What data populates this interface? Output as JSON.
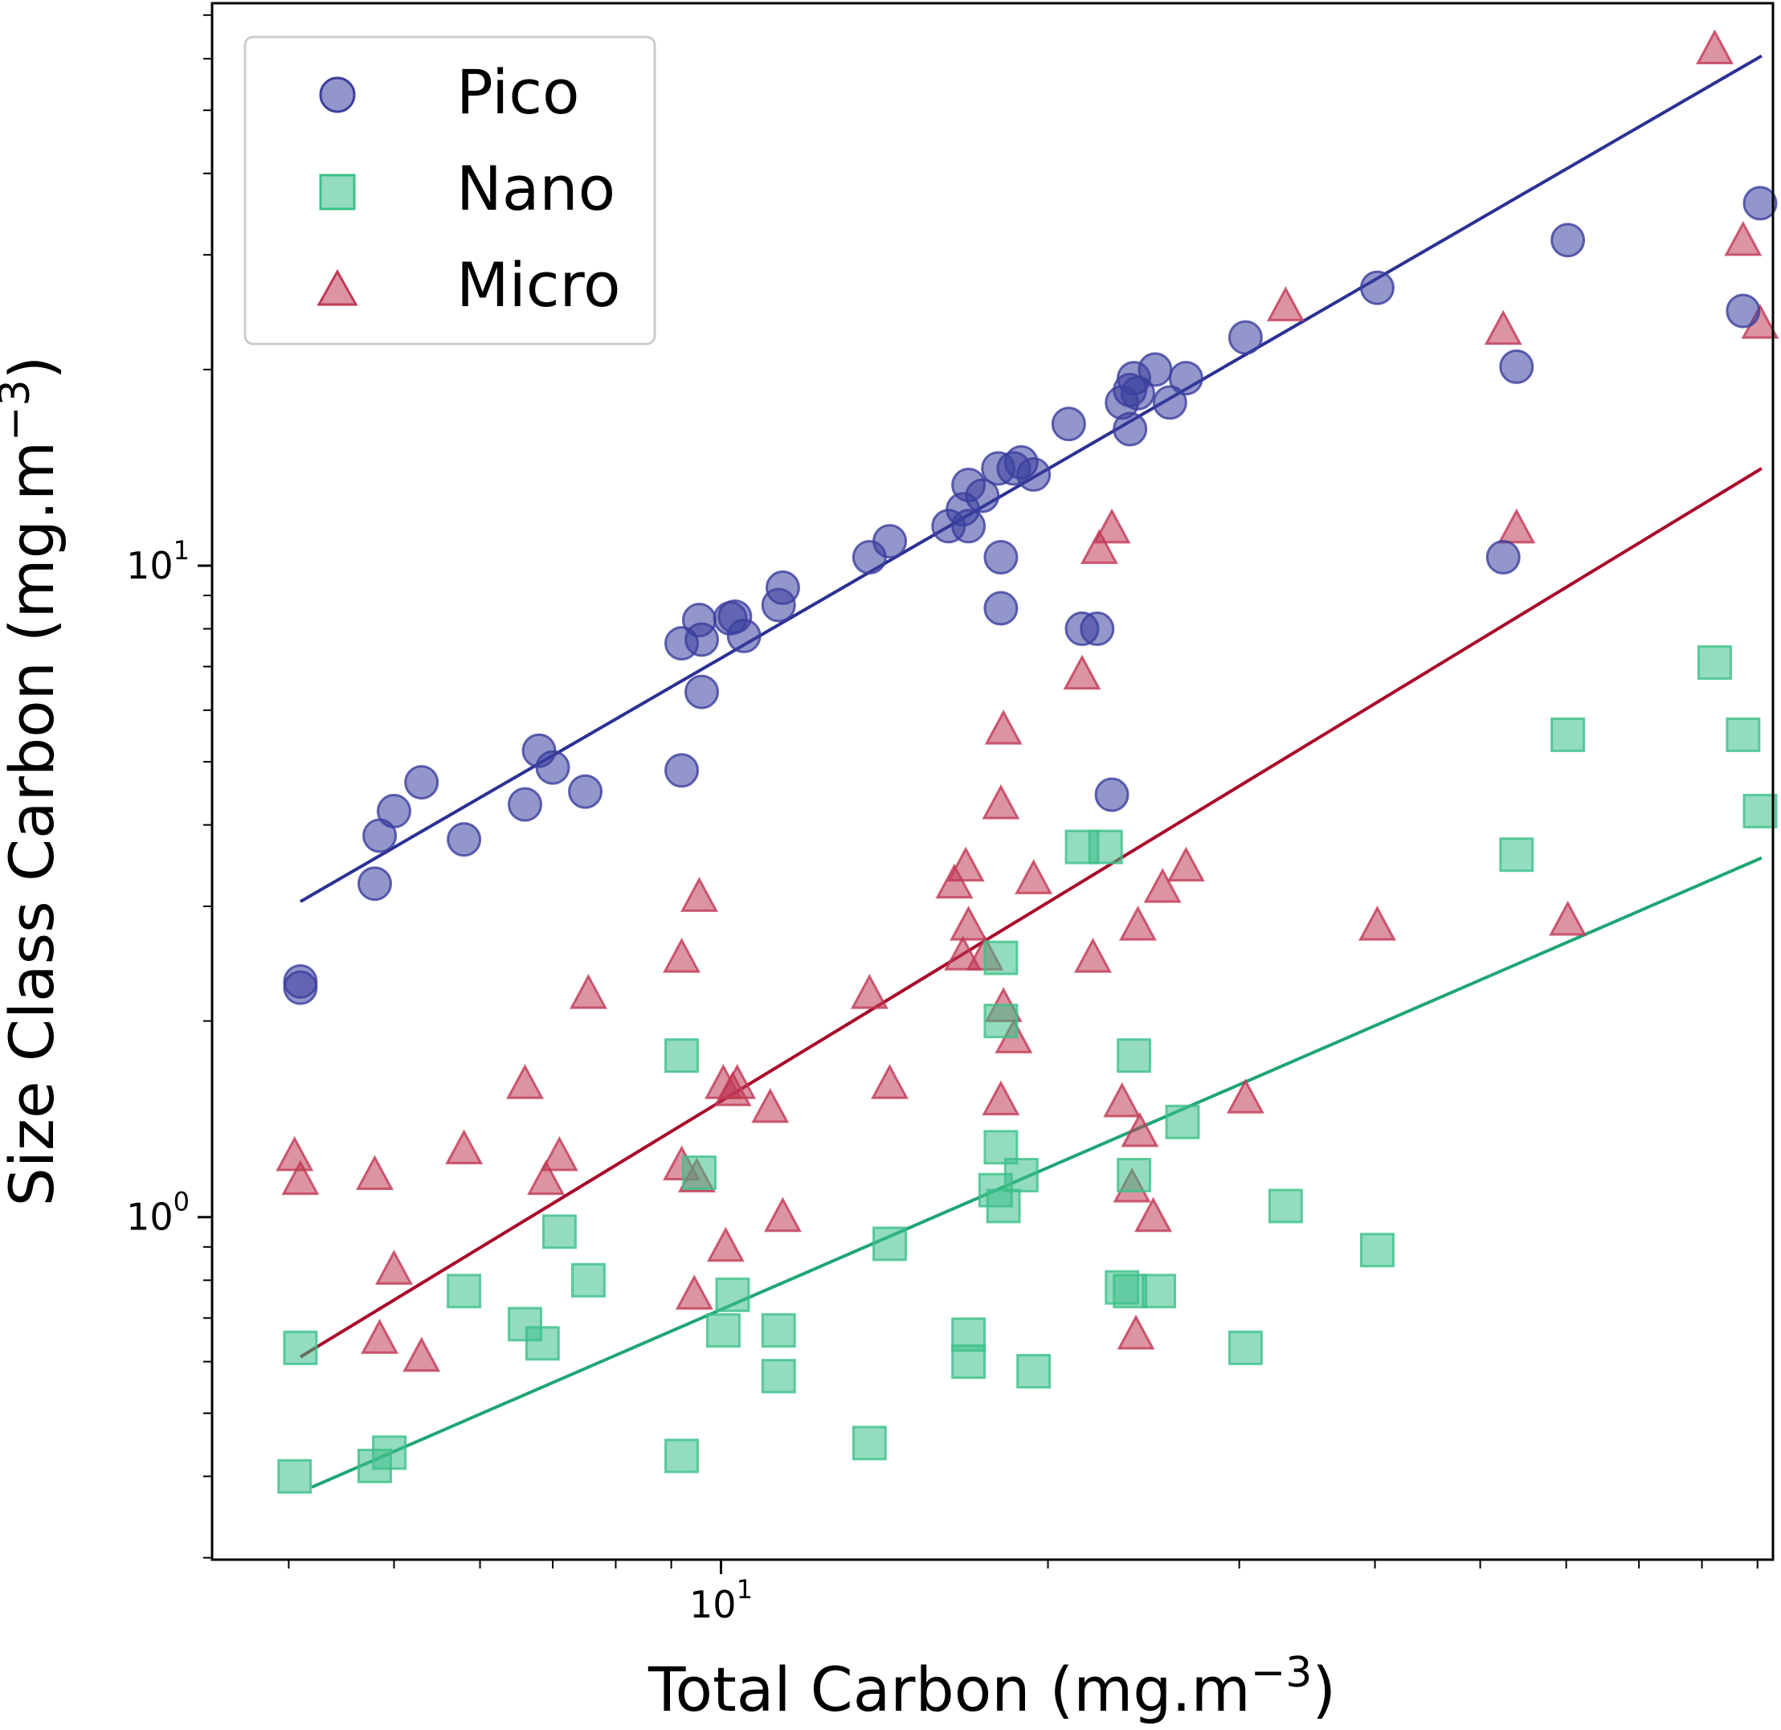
{
  "colors": {
    "pico": "#3b3f9e",
    "pico_line": "#2c3193",
    "nano": "#3cc08a",
    "nano_line": "#1fa673",
    "micro": "#c03a55",
    "micro_line": "#a8082a"
  },
  "chart_data": {
    "type": "scatter",
    "title": "",
    "xlabel": "Total Carbon (mg.m",
    "ylabel": "Size Class Carbon (mg.m",
    "unit_exponent": "−3",
    "xscale": "log",
    "yscale": "log",
    "xlim": [
      3.4,
      93
    ],
    "ylim": [
      0.298,
      73
    ],
    "x_ticks": [
      {
        "base": "10",
        "exp": "1",
        "value": 10
      }
    ],
    "y_ticks": [
      {
        "base": "10",
        "exp": "0",
        "value": 1
      },
      {
        "base": "10",
        "exp": "1",
        "value": 10
      }
    ],
    "legend": {
      "position": "top-left",
      "entries": [
        "Pico",
        "Nano",
        "Micro"
      ]
    },
    "series": [
      {
        "name": "Pico",
        "marker": "circle",
        "fit": {
          "x": [
            4.1,
            90.8
          ],
          "y": [
            3.05,
            60.6
          ]
        },
        "points": [
          [
            4.1,
            2.3
          ],
          [
            4.1,
            2.25
          ],
          [
            4.8,
            3.25
          ],
          [
            4.85,
            3.85
          ],
          [
            5.0,
            4.2
          ],
          [
            5.3,
            4.65
          ],
          [
            5.8,
            3.8
          ],
          [
            6.6,
            4.3
          ],
          [
            6.8,
            5.2
          ],
          [
            7.0,
            4.9
          ],
          [
            7.5,
            4.5
          ],
          [
            9.2,
            4.85
          ],
          [
            9.2,
            7.6
          ],
          [
            9.55,
            8.25
          ],
          [
            9.6,
            6.4
          ],
          [
            9.6,
            7.7
          ],
          [
            10.2,
            8.3
          ],
          [
            10.3,
            8.35
          ],
          [
            10.5,
            7.8
          ],
          [
            11.3,
            8.7
          ],
          [
            11.4,
            9.25
          ],
          [
            13.7,
            10.3
          ],
          [
            14.3,
            10.9
          ],
          [
            16.2,
            11.5
          ],
          [
            16.7,
            12.2
          ],
          [
            16.9,
            11.5
          ],
          [
            16.9,
            13.3
          ],
          [
            17.4,
            12.8
          ],
          [
            18.0,
            14.1
          ],
          [
            18.1,
            10.3
          ],
          [
            18.1,
            8.6
          ],
          [
            18.6,
            14.1
          ],
          [
            18.9,
            14.4
          ],
          [
            19.4,
            13.8
          ],
          [
            20.9,
            16.5
          ],
          [
            21.5,
            8.0
          ],
          [
            22.2,
            8.0
          ],
          [
            22.9,
            4.45
          ],
          [
            23.4,
            17.8
          ],
          [
            23.8,
            16.2
          ],
          [
            23.8,
            18.6
          ],
          [
            24.0,
            19.4
          ],
          [
            24.2,
            18.4
          ],
          [
            25.1,
            20.0
          ],
          [
            25.9,
            17.8
          ],
          [
            26.8,
            19.4
          ],
          [
            30.4,
            22.4
          ],
          [
            40.2,
            26.7
          ],
          [
            52.5,
            10.3
          ],
          [
            54.0,
            20.2
          ],
          [
            60.2,
            31.6
          ],
          [
            87.3,
            24.6
          ],
          [
            90.5,
            36.0
          ]
        ]
      },
      {
        "name": "Nano",
        "marker": "square",
        "fit": {
          "x": [
            4.2,
            90.8
          ],
          "y": [
            0.385,
            3.56
          ]
        },
        "points": [
          [
            4.05,
            0.4
          ],
          [
            4.1,
            0.63
          ],
          [
            4.8,
            0.415
          ],
          [
            4.95,
            0.435
          ],
          [
            5.8,
            0.77
          ],
          [
            6.6,
            0.685
          ],
          [
            6.85,
            0.64
          ],
          [
            7.1,
            0.95
          ],
          [
            7.55,
            0.8
          ],
          [
            9.2,
            1.77
          ],
          [
            9.2,
            0.43
          ],
          [
            9.55,
            1.17
          ],
          [
            10.05,
            0.67
          ],
          [
            10.25,
            0.76
          ],
          [
            11.3,
            0.67
          ],
          [
            11.3,
            0.57
          ],
          [
            13.7,
            0.45
          ],
          [
            14.3,
            0.91
          ],
          [
            16.9,
            0.66
          ],
          [
            16.9,
            0.6
          ],
          [
            17.9,
            1.1
          ],
          [
            18.1,
            2.5
          ],
          [
            18.1,
            1.28
          ],
          [
            18.1,
            2.0
          ],
          [
            18.2,
            1.04
          ],
          [
            18.9,
            1.16
          ],
          [
            19.4,
            0.58
          ],
          [
            21.5,
            3.7
          ],
          [
            22.6,
            3.7
          ],
          [
            23.4,
            0.78
          ],
          [
            23.8,
            0.77
          ],
          [
            24.0,
            1.77
          ],
          [
            24.0,
            1.16
          ],
          [
            25.3,
            0.77
          ],
          [
            26.6,
            1.4
          ],
          [
            30.4,
            0.63
          ],
          [
            33.1,
            1.04
          ],
          [
            40.2,
            0.89
          ],
          [
            54.0,
            3.6
          ],
          [
            60.2,
            5.5
          ],
          [
            82.2,
            7.1
          ],
          [
            87.3,
            5.5
          ],
          [
            90.5,
            4.2
          ]
        ]
      },
      {
        "name": "Micro",
        "marker": "triangle",
        "fit": {
          "x": [
            4.1,
            90.8
          ],
          "y": [
            0.61,
            14.1
          ]
        },
        "points": [
          [
            4.05,
            1.24
          ],
          [
            4.1,
            1.14
          ],
          [
            4.8,
            1.16
          ],
          [
            4.85,
            0.65
          ],
          [
            5.0,
            0.83
          ],
          [
            5.3,
            0.61
          ],
          [
            5.8,
            1.27
          ],
          [
            6.6,
            1.6
          ],
          [
            6.9,
            1.14
          ],
          [
            7.1,
            1.24
          ],
          [
            7.55,
            2.2
          ],
          [
            9.2,
            2.5
          ],
          [
            9.2,
            1.2
          ],
          [
            9.45,
            0.76
          ],
          [
            9.5,
            1.15
          ],
          [
            9.55,
            3.1
          ],
          [
            10.05,
            1.6
          ],
          [
            10.1,
            0.9
          ],
          [
            10.25,
            1.56
          ],
          [
            10.35,
            1.6
          ],
          [
            11.1,
            1.47
          ],
          [
            11.4,
            1.0
          ],
          [
            13.7,
            2.2
          ],
          [
            14.3,
            1.6
          ],
          [
            16.4,
            3.25
          ],
          [
            16.7,
            2.52
          ],
          [
            16.8,
            3.45
          ],
          [
            16.9,
            2.8
          ],
          [
            17.5,
            2.52
          ],
          [
            18.1,
            1.51
          ],
          [
            18.1,
            4.3
          ],
          [
            18.2,
            2.1
          ],
          [
            18.2,
            5.6
          ],
          [
            18.6,
            1.88
          ],
          [
            19.4,
            3.3
          ],
          [
            21.5,
            6.8
          ],
          [
            22.0,
            2.5
          ],
          [
            22.3,
            10.6
          ],
          [
            22.9,
            11.4
          ],
          [
            23.4,
            1.5
          ],
          [
            23.9,
            1.11
          ],
          [
            24.1,
            0.66
          ],
          [
            24.2,
            2.8
          ],
          [
            24.3,
            1.35
          ],
          [
            25.0,
            1.0
          ],
          [
            25.5,
            3.2
          ],
          [
            26.8,
            3.45
          ],
          [
            30.4,
            1.52
          ],
          [
            33.1,
            25.0
          ],
          [
            40.2,
            2.8
          ],
          [
            52.5,
            23.0
          ],
          [
            54.0,
            11.4
          ],
          [
            60.2,
            2.85
          ],
          [
            82.2,
            62.0
          ],
          [
            87.3,
            31.5
          ],
          [
            90.5,
            23.5
          ]
        ]
      }
    ]
  }
}
